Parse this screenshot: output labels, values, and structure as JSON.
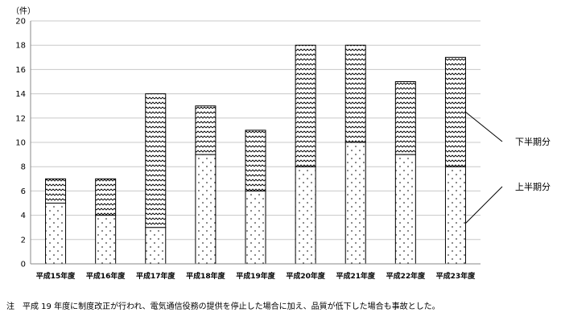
{
  "chart_data": {
    "type": "bar",
    "stacked": true,
    "unit_label": "（件）",
    "categories": [
      "平成15年度",
      "平成16年度",
      "平成17年度",
      "平成18年度",
      "平成19年度",
      "平成20年度",
      "平成21年度",
      "平成22年度",
      "平成23年度"
    ],
    "series": [
      {
        "name": "上半期分",
        "values": [
          5,
          4,
          3,
          9,
          6,
          8,
          10,
          9,
          8
        ],
        "pattern": "dots"
      },
      {
        "name": "下半期分",
        "values": [
          2,
          3,
          11,
          4,
          5,
          10,
          8,
          6,
          9
        ],
        "pattern": "waves"
      }
    ],
    "ylim": [
      0,
      20
    ],
    "yticks": [
      0,
      2,
      4,
      6,
      8,
      10,
      12,
      14,
      16,
      18,
      20
    ],
    "grid": true,
    "legend": "right",
    "colors": {
      "bar_fill": "#ffffff",
      "pattern": "#000000",
      "grid": "#c8c8c8"
    }
  },
  "footnote": "注　平成 19 年度に制度改正が行われ、電気通信役務の提供を停止した場合に加え、品質が低下した場合も事故とした。"
}
